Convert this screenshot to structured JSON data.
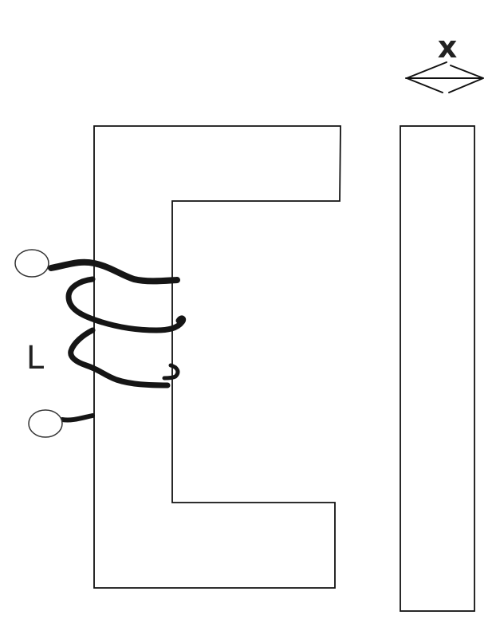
{
  "labels": {
    "gap_variable": "x",
    "inductance": "L"
  },
  "colors": {
    "background": "#ffffff",
    "outline": "#111111",
    "coil": "#151515",
    "terminal": "#333333"
  },
  "icons": {
    "gap_arrow": "double-headed-arrow-icon"
  }
}
